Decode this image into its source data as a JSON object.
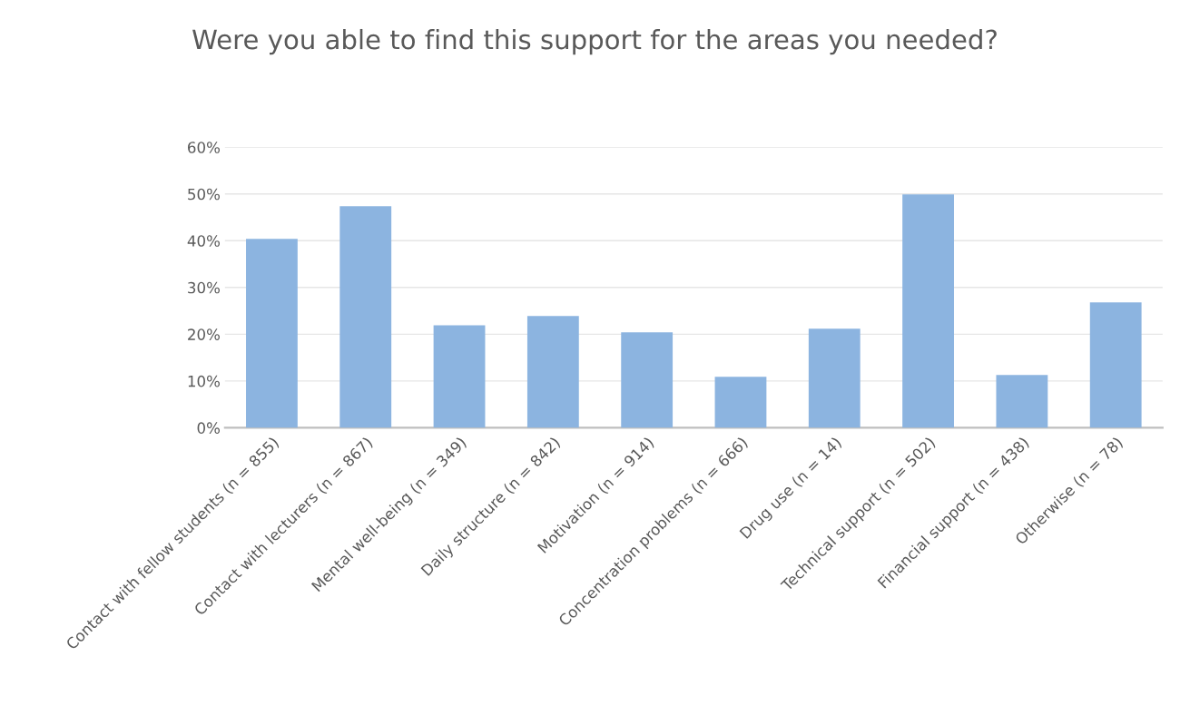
{
  "chart_data": {
    "type": "bar",
    "title": "Were you able to find this support for the areas you needed?",
    "categories": [
      "Contact with fellow students (n = 855)",
      "Contact with lecturers (n = 867)",
      "Mental well-being (n = 349)",
      "Daily structure (n = 842)",
      "Motivation (n = 914)",
      "Concentration problems (n = 666)",
      "Drug use (n = 14)",
      "Technical support (n = 502)",
      "Financial support (n = 438)",
      "Otherwise (n = 78)"
    ],
    "values": [
      40.4,
      47.4,
      21.9,
      23.9,
      20.4,
      10.9,
      21.2,
      49.9,
      11.3,
      26.8
    ],
    "color": "#8cb4e0",
    "ylim": [
      0,
      60
    ],
    "yticks": [
      {
        "value": 0,
        "label": "0%"
      },
      {
        "value": 10,
        "label": "10%"
      },
      {
        "value": 20,
        "label": "20%"
      },
      {
        "value": 30,
        "label": "30%"
      },
      {
        "value": 40,
        "label": "40%"
      },
      {
        "value": 50,
        "label": "50%"
      },
      {
        "value": 60,
        "label": "60%"
      }
    ],
    "grid": "y"
  }
}
